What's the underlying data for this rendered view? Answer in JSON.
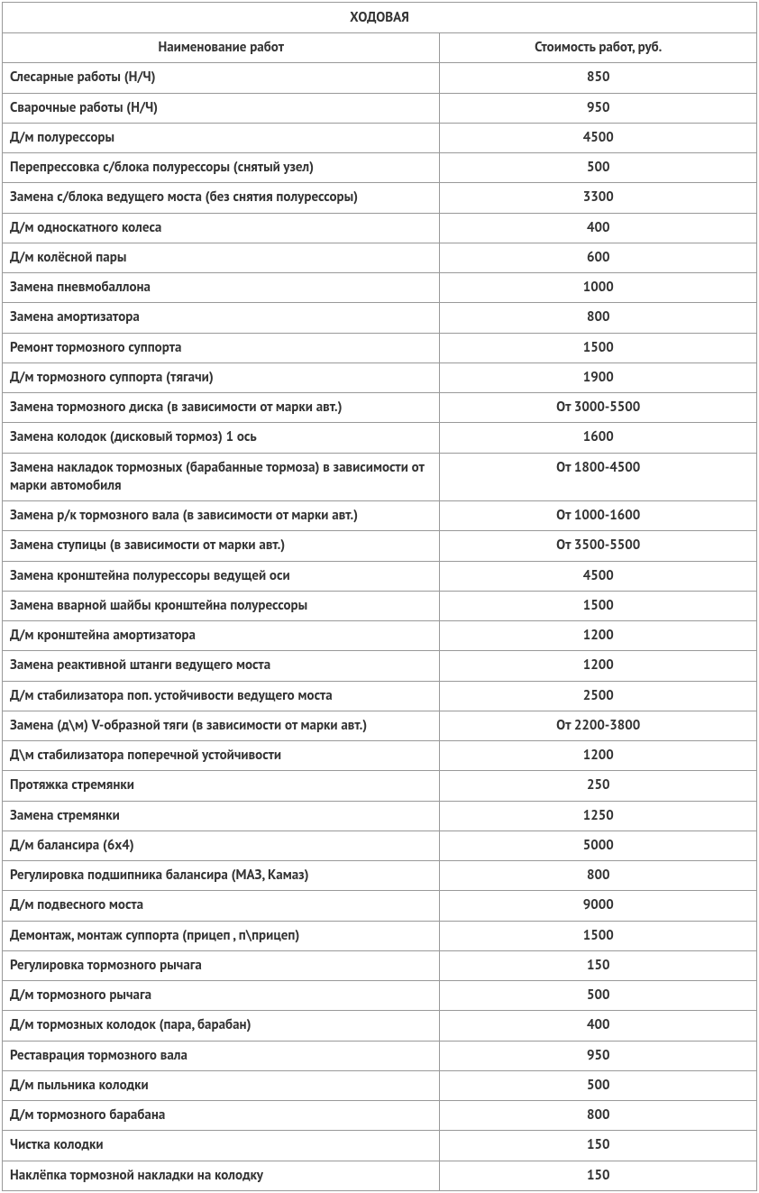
{
  "table": {
    "title": "ХОДОВАЯ",
    "columns": [
      "Наименование работ",
      "Стоимость работ, руб."
    ],
    "rows": [
      [
        "Слесарные работы (Н/Ч)",
        "850"
      ],
      [
        "Сварочные работы (Н/Ч)",
        "950"
      ],
      [
        "Д/м полурессоры",
        "4500"
      ],
      [
        "Перепрессовка с/блока полурессоры (снятый узел)",
        "500"
      ],
      [
        "Замена с/блока ведущего моста (без снятия полурессоры)",
        "3300"
      ],
      [
        "Д/м односкатного колеса",
        "400"
      ],
      [
        "Д/м колёсной пары",
        "600"
      ],
      [
        "Замена пневмобаллона",
        "1000"
      ],
      [
        "Замена амортизатора",
        "800"
      ],
      [
        "Ремонт тормозного суппорта",
        "1500"
      ],
      [
        "Д/м тормозного суппорта (тягачи)",
        "1900"
      ],
      [
        "Замена тормозного диска (в зависимости от марки авт.)",
        "От 3000-5500"
      ],
      [
        "Замена колодок (дисковый тормоз) 1 ось",
        "1600"
      ],
      [
        "Замена накладок тормозных (барабанные тормоза) в зависимости от марки автомобиля",
        "От 1800-4500"
      ],
      [
        "Замена р/к тормозного вала (в зависимости от марки авт.)",
        "От 1000-1600"
      ],
      [
        "Замена ступицы (в зависимости от марки авт.)",
        "От 3500-5500"
      ],
      [
        "Замена кронштейна полурессоры ведущей оси",
        "4500"
      ],
      [
        "Замена вварной шайбы кронштейна полурессоры",
        "1500"
      ],
      [
        "Д/м кронштейна амортизатора",
        "1200"
      ],
      [
        "Замена реактивной штанги ведущего моста",
        "1200"
      ],
      [
        "Д/м стабилизатора поп. устойчивости ведущего моста",
        "2500"
      ],
      [
        "Замена (д\\м) V-образной тяги (в зависимости от марки авт.)",
        "От 2200-3800"
      ],
      [
        "Д\\м стабилизатора поперечной устойчивости",
        "1200"
      ],
      [
        "Протяжка стремянки",
        "250"
      ],
      [
        "Замена стремянки",
        "1250"
      ],
      [
        "Д/м балансира (6х4)",
        "5000"
      ],
      [
        "Регулировка подшипника балансира (МАЗ, Камаз)",
        "800"
      ],
      [
        "Д/м подвесного моста",
        "9000"
      ],
      [
        "Демонтаж, монтаж суппорта (прицеп , п\\прицеп)",
        "1500"
      ],
      [
        "Регулировка тормозного рычага",
        "150"
      ],
      [
        "Д/м тормозного рычага",
        "500"
      ],
      [
        "Д/м тормозных колодок (пара, барабан)",
        "400"
      ],
      [
        "Реставрация тормозного вала",
        "950"
      ],
      [
        "Д/м пыльника колодки",
        "500"
      ],
      [
        "Д/м тормозного барабана",
        "800"
      ],
      [
        "Чистка колодки",
        "150"
      ],
      [
        "Наклёпка тормозной накладки на колодку",
        "150"
      ]
    ],
    "styling": {
      "border_color": "#999999",
      "text_color": "#333333",
      "background_color": "#ffffff",
      "font_size": 15,
      "font_weight": 700,
      "col_name_width_pct": 58,
      "col_price_width_pct": 42,
      "col_name_align": "left",
      "col_price_align": "center",
      "header_align": "center"
    }
  }
}
